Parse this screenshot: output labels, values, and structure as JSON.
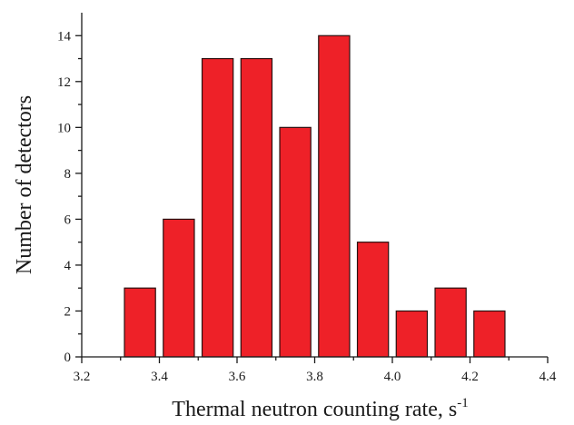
{
  "chart_data": {
    "type": "bar",
    "title": "",
    "xlabel": "Thermal neutron counting rate, s",
    "xlabel_superscript": "-1",
    "ylabel": "Number of detectors",
    "xlim": [
      3.2,
      4.4
    ],
    "ylim": [
      0,
      15
    ],
    "x_ticks": [
      "3.2",
      "3.4",
      "3.6",
      "3.8",
      "4.0",
      "4.2",
      "4.4"
    ],
    "y_ticks": [
      "0",
      "2",
      "4",
      "6",
      "8",
      "10",
      "12",
      "14"
    ],
    "x_minor_ticks": [
      3.3,
      3.5,
      3.7,
      3.9,
      4.1,
      4.3
    ],
    "y_minor_ticks": [
      1,
      3,
      5,
      7,
      9,
      11,
      13
    ],
    "bin_width": 0.1,
    "bar_width": 0.08,
    "x": [
      3.35,
      3.45,
      3.55,
      3.65,
      3.75,
      3.85,
      3.95,
      4.05,
      4.15,
      4.25
    ],
    "values": [
      3,
      6,
      13,
      13,
      10,
      14,
      5,
      2,
      3,
      2
    ],
    "bar_color": "#ee2128",
    "grid": false
  }
}
